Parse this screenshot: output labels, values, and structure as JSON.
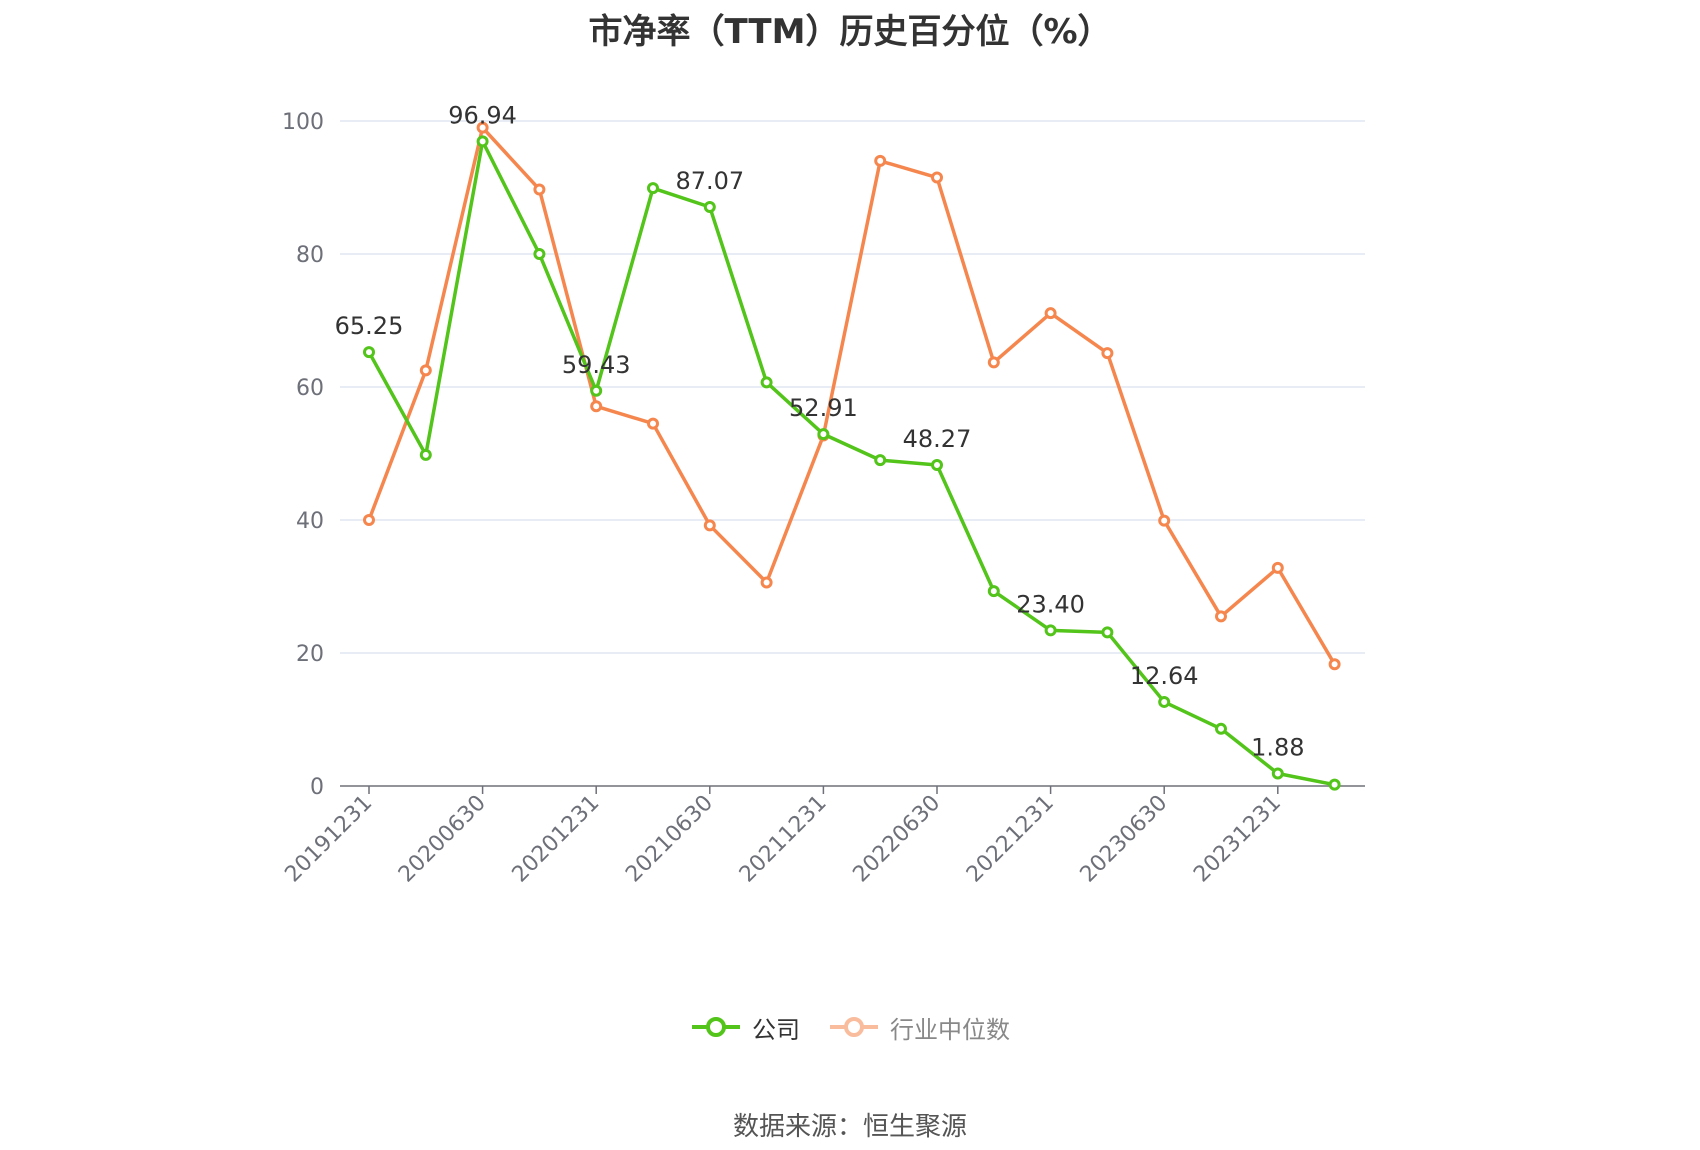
{
  "chart_data": {
    "type": "line",
    "title": "市净率（TTM）历史百分位（%）",
    "source_text": "数据来源：恒生聚源",
    "xlabel": "",
    "ylabel": "",
    "ylim": [
      0,
      100
    ],
    "yticks": [
      "0",
      "20",
      "40",
      "60",
      "80",
      "100"
    ],
    "grid": true,
    "legend_position": "bottom",
    "x": [
      "20191231",
      "20200331",
      "20200630",
      "20200930",
      "20201231",
      "20210331",
      "20210630",
      "20210930",
      "20211231",
      "20220331",
      "20220630",
      "20220930",
      "20221231",
      "20230331",
      "20230630",
      "20230930",
      "20231231",
      "20240331"
    ],
    "x_tick_labels": [
      "20191231",
      "20200630",
      "20201231",
      "20210630",
      "20211231",
      "20220630",
      "20221231",
      "20230630",
      "20231231"
    ],
    "series": [
      {
        "name": "公司",
        "color": "#52c41a",
        "values": [
          65.25,
          49.8,
          96.94,
          80.0,
          59.43,
          89.9,
          87.07,
          60.7,
          52.91,
          49.0,
          48.27,
          29.3,
          23.4,
          23.1,
          12.64,
          8.6,
          1.88,
          0.2
        ],
        "labels": [
          "65.25",
          "",
          "96.94",
          "",
          "59.43",
          "",
          "87.07",
          "",
          "52.91",
          "",
          "48.27",
          "",
          "23.40",
          "",
          "12.64",
          "",
          "1.88",
          ""
        ]
      },
      {
        "name": "行业中位数",
        "color": "#f5874e",
        "values": [
          40.0,
          62.5,
          99.0,
          89.7,
          57.1,
          54.5,
          39.2,
          30.6,
          52.7,
          94.0,
          91.5,
          63.7,
          71.1,
          65.1,
          39.9,
          25.5,
          32.8,
          18.3
        ],
        "labels": []
      }
    ]
  }
}
